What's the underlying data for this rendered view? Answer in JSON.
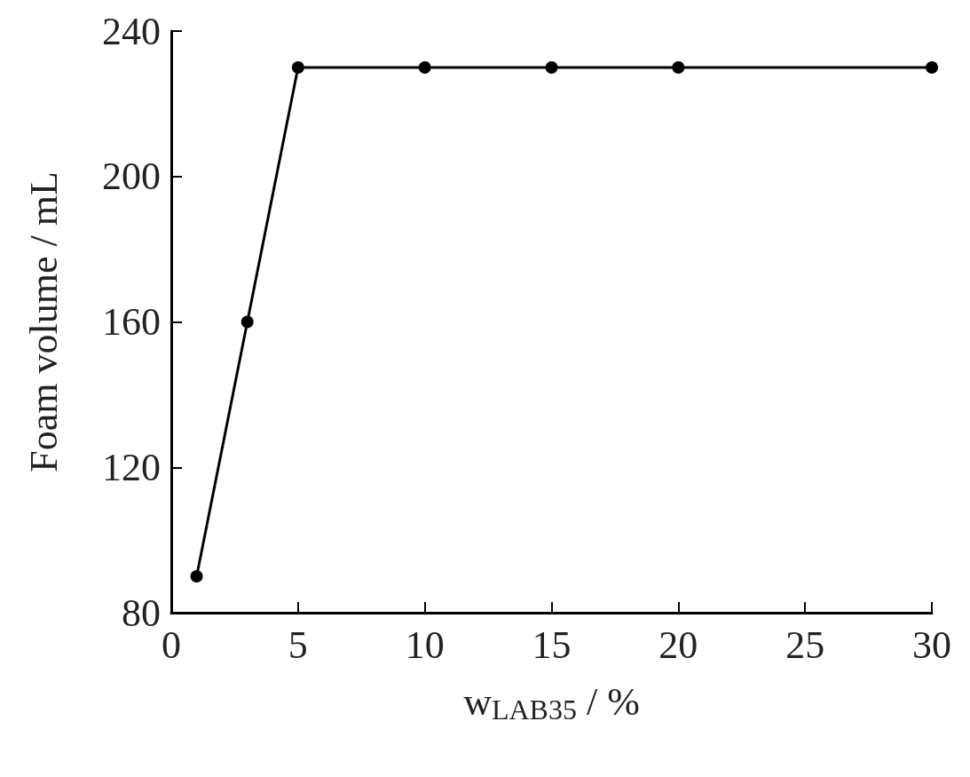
{
  "chart_data": {
    "type": "line",
    "xlabel": "w$_{LAB35}$ / %",
    "ylabel": "Foam volume / mL",
    "x": [
      1,
      3,
      5,
      10,
      15,
      20,
      30
    ],
    "series": [
      {
        "color": "#000000",
        "values": [
          90,
          160,
          230,
          230,
          230,
          230,
          230
        ]
      }
    ],
    "xlim": [
      0,
      30
    ],
    "xticks": [
      0,
      5,
      10,
      15,
      20,
      25,
      30
    ],
    "ylim": [
      80,
      240
    ],
    "yticks": [
      80,
      120,
      160,
      200,
      240
    ],
    "grid": false,
    "marker": "circle",
    "line_style": "solid"
  }
}
